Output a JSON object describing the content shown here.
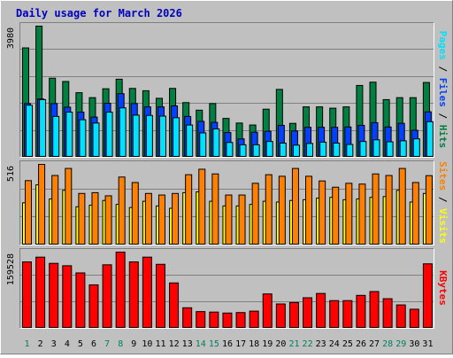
{
  "colors": {
    "background": "#C0C0C0",
    "plot_background": "#C0C0C0",
    "border_dark": "#808080",
    "border_light": "#FFFFFF",
    "gridline": "#808080",
    "title": "#0000C0",
    "hits": "#008040",
    "files": "#0040FF",
    "pages": "#00E0FF",
    "visits": "#FFFF00",
    "sites": "#FF8000",
    "kbytes": "#FF0000",
    "day_weekday": "#000000",
    "day_weekend": "#00805C"
  },
  "chart_data": [
    {
      "type": "bar",
      "title": "Daily usage for March 2026",
      "ylabel_parts": [
        {
          "text": "Pages",
          "color": "#00E0FF"
        },
        {
          "text": " / ",
          "color": "#000000"
        },
        {
          "text": "Files",
          "color": "#0040FF"
        },
        {
          "text": " / ",
          "color": "#000000"
        },
        {
          "text": "Hits",
          "color": "#008040"
        }
      ],
      "ymax_label": "3980",
      "ylim": [
        0,
        3980
      ],
      "categories": [
        1,
        2,
        3,
        4,
        5,
        6,
        7,
        8,
        9,
        10,
        11,
        12,
        13,
        14,
        15,
        16,
        17,
        18,
        19,
        20,
        21,
        22,
        23,
        24,
        25,
        26,
        27,
        28,
        29,
        30,
        31
      ],
      "weekend_days": [
        1,
        7,
        8,
        14,
        15,
        21,
        22,
        28,
        29
      ],
      "series": [
        {
          "name": "Hits",
          "values": [
            3320,
            3980,
            2400,
            2300,
            1960,
            1810,
            2080,
            2370,
            2090,
            2020,
            1790,
            2090,
            1660,
            1430,
            1630,
            1180,
            1040,
            980,
            1460,
            2060,
            1030,
            1530,
            1530,
            1490,
            1530,
            2180,
            2280,
            1750,
            1810,
            1810,
            2270
          ]
        },
        {
          "name": "Files",
          "values": [
            1630,
            1770,
            1630,
            1520,
            1370,
            1220,
            1640,
            1930,
            1630,
            1530,
            1530,
            1560,
            1240,
            1090,
            1060,
            750,
            560,
            760,
            790,
            970,
            800,
            910,
            910,
            910,
            920,
            970,
            1050,
            920,
            1030,
            820,
            1380
          ]
        },
        {
          "name": "Pages",
          "values": [
            1580,
            1750,
            1240,
            1370,
            1140,
            1040,
            1370,
            1500,
            1280,
            1270,
            1250,
            1200,
            980,
            740,
            860,
            450,
            380,
            380,
            480,
            430,
            370,
            420,
            460,
            430,
            390,
            480,
            530,
            470,
            500,
            560,
            1080
          ]
        }
      ]
    },
    {
      "type": "bar",
      "ylabel_parts": [
        {
          "text": "Sites",
          "color": "#FF8000"
        },
        {
          "text": " / ",
          "color": "#000000"
        },
        {
          "text": "Visits",
          "color": "#FFFF00"
        }
      ],
      "ymax_label": "516",
      "ylim": [
        0,
        516
      ],
      "series": [
        {
          "name": "Sites",
          "values": [
            412,
            516,
            445,
            490,
            330,
            335,
            315,
            435,
            400,
            330,
            320,
            330,
            450,
            485,
            455,
            320,
            320,
            395,
            450,
            440,
            490,
            440,
            410,
            370,
            395,
            390,
            455,
            445,
            490,
            400,
            444
          ]
        },
        {
          "name": "Visits",
          "values": [
            270,
            385,
            295,
            350,
            245,
            255,
            285,
            260,
            240,
            280,
            250,
            235,
            335,
            340,
            280,
            250,
            250,
            260,
            280,
            275,
            285,
            290,
            300,
            305,
            290,
            295,
            305,
            310,
            350,
            275,
            330
          ]
        }
      ]
    },
    {
      "type": "bar",
      "ylabel_parts": [
        {
          "text": "KBytes",
          "color": "#FF0000"
        }
      ],
      "ymax_label": "159528",
      "ylim": [
        0,
        159528
      ],
      "series": [
        {
          "name": "KBytes",
          "values": [
            139000,
            149000,
            136000,
            131000,
            116000,
            91000,
            133000,
            159528,
            139000,
            149000,
            134000,
            95000,
            43000,
            35000,
            34000,
            32000,
            33000,
            36000,
            72000,
            51000,
            54000,
            64000,
            73000,
            58000,
            58000,
            69000,
            77000,
            62000,
            49000,
            40000,
            135000
          ]
        }
      ]
    }
  ]
}
